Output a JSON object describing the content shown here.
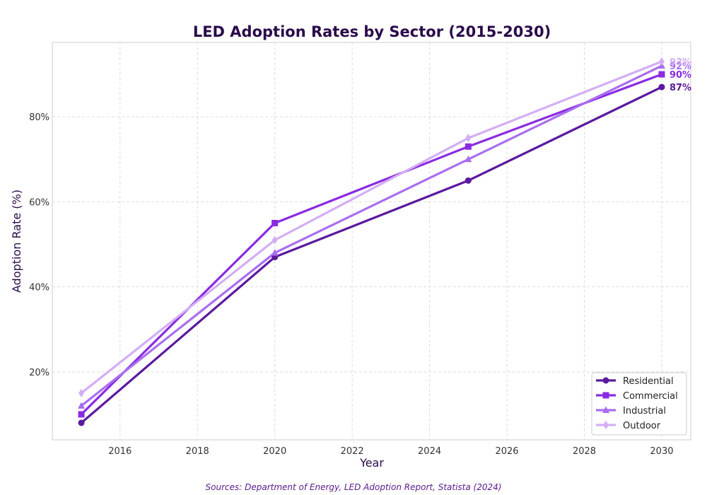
{
  "chart_data": {
    "type": "line",
    "title": "LED Adoption Rates by Sector (2015-2030)",
    "xlabel": "Year",
    "ylabel": "Adoption Rate (%)",
    "x": [
      2015,
      2020,
      2025,
      2030
    ],
    "xlim": [
      2014.25,
      2030.75
    ],
    "ylim": [
      4,
      97.5
    ],
    "xticks": [
      2016,
      2018,
      2020,
      2022,
      2024,
      2026,
      2028,
      2030
    ],
    "yticks": [
      20,
      40,
      60,
      80
    ],
    "ytick_format": "%",
    "grid": true,
    "legend_position": "lower-right",
    "series": [
      {
        "name": "Residential",
        "values": [
          8,
          47,
          65,
          87
        ],
        "color": "#5b1a9e",
        "marker": "circle",
        "end_label": "87%"
      },
      {
        "name": "Commercial",
        "values": [
          10,
          55,
          73,
          90
        ],
        "color": "#8a2be2",
        "marker": "square",
        "end_label": "90%"
      },
      {
        "name": "Industrial",
        "values": [
          12,
          48,
          70,
          92
        ],
        "color": "#a96ef0",
        "marker": "triangle",
        "end_label": "92%"
      },
      {
        "name": "Outdoor",
        "values": [
          15,
          51,
          75,
          93
        ],
        "color": "#d3aef5",
        "marker": "diamond",
        "end_label": "93%"
      }
    ]
  },
  "footer": {
    "source": "Sources: Department of Energy, LED Adoption Report, Statista (2024)"
  }
}
